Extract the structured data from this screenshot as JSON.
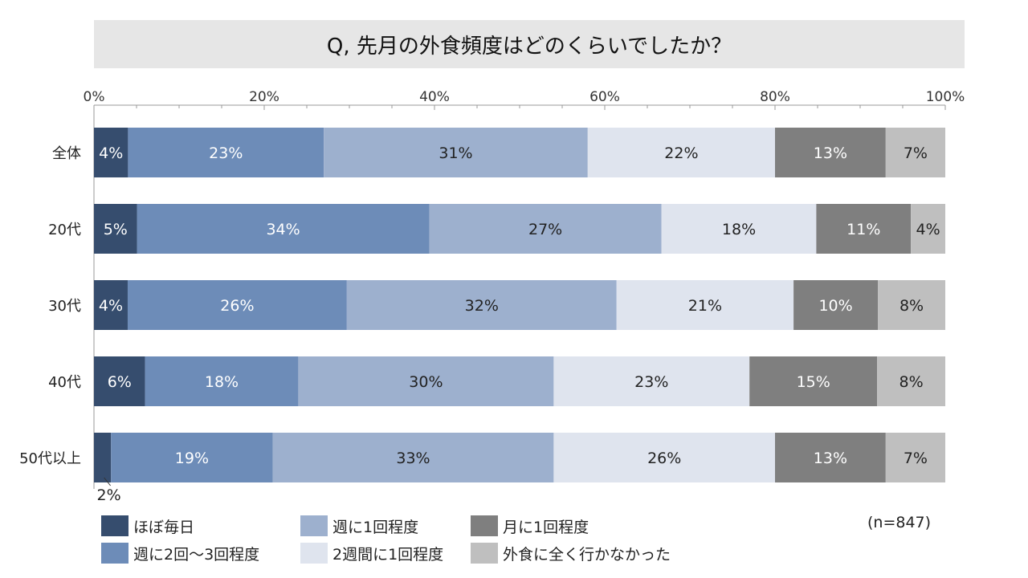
{
  "title": "Q, 先月の外食頻度はどのくらいでしたか？",
  "note": "(n=847)",
  "colors": [
    "#364d6e",
    "#6d8cb8",
    "#9db0ce",
    "#dfe4ee",
    "#7f7f7f",
    "#bfbfbf"
  ],
  "chart_data": {
    "type": "bar",
    "orientation": "horizontal",
    "stacked": "percent",
    "xlim": [
      0,
      100
    ],
    "xticks": [
      "0%",
      "20%",
      "40%",
      "60%",
      "80%",
      "100%"
    ],
    "categories": [
      "全体",
      "20代",
      "30代",
      "40代",
      "50代以上"
    ],
    "series": [
      {
        "name": "ほぼ毎日",
        "values": [
          4,
          5,
          4,
          6,
          2
        ],
        "labels": [
          "4%",
          "5%",
          "4%",
          "6%",
          "2%"
        ]
      },
      {
        "name": "週に2回～3回程度",
        "values": [
          23,
          34,
          26,
          18,
          19
        ],
        "labels": [
          "23%",
          "34%",
          "26%",
          "18%",
          "19%"
        ]
      },
      {
        "name": "週に1回程度",
        "values": [
          31,
          27,
          32,
          30,
          33
        ],
        "labels": [
          "31%",
          "27%",
          "32%",
          "30%",
          "33%"
        ]
      },
      {
        "name": "2週間に1回程度",
        "values": [
          22,
          18,
          21,
          23,
          26
        ],
        "labels": [
          "22%",
          "18%",
          "21%",
          "23%",
          "26%"
        ]
      },
      {
        "name": "月に1回程度",
        "values": [
          13,
          11,
          10,
          15,
          13
        ],
        "labels": [
          "13%",
          "11%",
          "10%",
          "15%",
          "13%"
        ]
      },
      {
        "name": "外食に全く行かなかった",
        "values": [
          7,
          4,
          8,
          8,
          7
        ],
        "labels": [
          "7%",
          "4%",
          "8%",
          "8%",
          "7%"
        ]
      }
    ],
    "legend_position": "bottom"
  }
}
